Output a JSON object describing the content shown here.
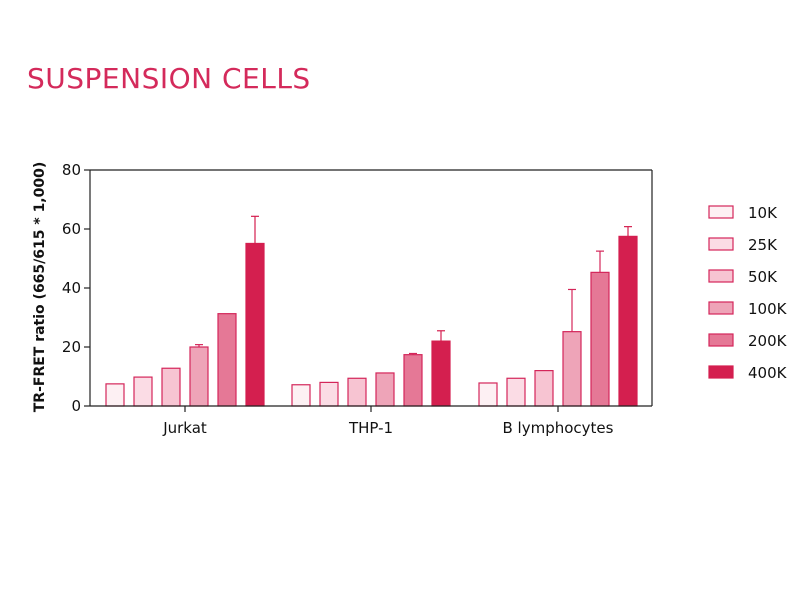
{
  "title": "SUSPENSION CELLS",
  "chart_data": {
    "type": "bar",
    "ylabel": "TR-FRET ratio (665/615 * 1,000)",
    "ylim": [
      0,
      80
    ],
    "yticks": [
      0,
      20,
      40,
      60,
      80
    ],
    "categories": [
      "Jurkat",
      "THP-1",
      "B lymphocytes"
    ],
    "series": [
      {
        "name": "10K",
        "values": [
          7.5,
          7.2,
          7.8
        ],
        "errors": [
          0,
          0,
          0
        ],
        "fill": "#fdf0f3",
        "stroke": "#d4265a"
      },
      {
        "name": "25K",
        "values": [
          9.8,
          8.0,
          9.4
        ],
        "errors": [
          0,
          0,
          0
        ],
        "fill": "#fbdce5",
        "stroke": "#d4265a"
      },
      {
        "name": "50K",
        "values": [
          12.8,
          9.4,
          12.0
        ],
        "errors": [
          0,
          0,
          0
        ],
        "fill": "#f7c4d2",
        "stroke": "#d4265a"
      },
      {
        "name": "100K",
        "values": [
          20.0,
          11.2,
          25.2
        ],
        "errors": [
          0.8,
          0,
          14.3
        ],
        "fill": "#eea4b8",
        "stroke": "#d4265a"
      },
      {
        "name": "200K",
        "values": [
          31.3,
          17.4,
          45.3
        ],
        "errors": [
          0,
          0.4,
          7.2
        ],
        "fill": "#e57896",
        "stroke": "#d4265a"
      },
      {
        "name": "400K",
        "values": [
          55.1,
          22.0,
          57.5
        ],
        "errors": [
          9.2,
          3.5,
          3.3
        ],
        "fill": "#d41f4f",
        "stroke": "#d41f4f"
      }
    ],
    "legend_position": "right",
    "grid": false
  }
}
